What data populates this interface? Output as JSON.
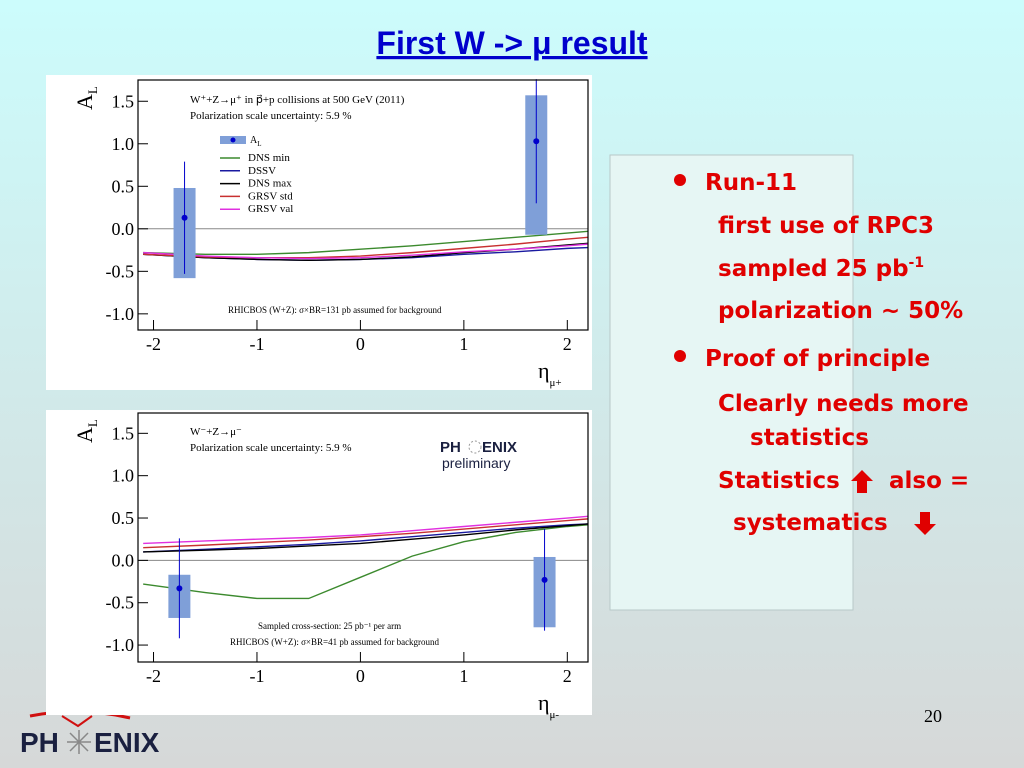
{
  "title": "First W -> μ result",
  "bullets": [
    {
      "text": "Run-11",
      "items": [
        {
          "text": "first use of RPC3"
        },
        {
          "text": "sampled 25 pb",
          "sup": "-1"
        },
        {
          "text": "polarization ~ 50%"
        }
      ]
    },
    {
      "text": "Proof of principle",
      "items": [
        {
          "text": "Clearly needs more"
        },
        {
          "text": "statistics"
        },
        {
          "text": "Statistics",
          "after": "also ="
        },
        {
          "text": "systematics"
        }
      ]
    }
  ],
  "page_number": "20",
  "logo": {
    "left": "PH",
    "right": "ENIX"
  },
  "charts": [
    {
      "type": "errorbar",
      "ylabel": "A",
      "ylabel_sub": "L",
      "xlabel": "η",
      "xlabel_sub": "μ+",
      "xlim": [
        -2.15,
        2.2
      ],
      "ylim": [
        -1.19,
        1.75
      ],
      "xticks": [
        -2,
        -1,
        0,
        1,
        2
      ],
      "yticks": [
        {
          "value": -1,
          "label": "-1.0"
        },
        -0.5,
        {
          "value": 0,
          "label": "0.0"
        },
        0.5,
        {
          "value": 1,
          "label": "1.0"
        },
        1.5
      ],
      "annotations": [
        "W⁺+Z→μ⁺ in p⃗+p collisions at 500 GeV (2011)",
        "Polarization scale uncertainty: 5.9 %",
        "RHICBOS (W+Z): σ×BR=131 pb assumed for background"
      ],
      "legend": true,
      "points": {
        "name": "A",
        "name_sub": "L",
        "color": "#0000cc",
        "box_color": "#7f9fd8",
        "x": [
          -1.7,
          1.7
        ],
        "values": [
          0.13,
          1.03
        ],
        "errors": [
          0.66,
          0.73
        ],
        "box_low": [
          -0.58,
          -0.07
        ],
        "box_high": [
          0.48,
          1.57
        ]
      },
      "series": [
        {
          "name": "DNS min",
          "color": "#3c8a2e",
          "x": [
            -2.1,
            -1.5,
            -1,
            -0.5,
            0,
            0.5,
            1,
            1.5,
            2,
            2.2
          ],
          "values": [
            -0.28,
            -0.3,
            -0.3,
            -0.28,
            -0.24,
            -0.2,
            -0.15,
            -0.1,
            -0.05,
            -0.03
          ]
        },
        {
          "name": "DSSV",
          "color": "#1a1aa0",
          "x": [
            -2.1,
            -1.5,
            -1,
            -0.5,
            0,
            0.5,
            1,
            1.5,
            2,
            2.2
          ],
          "values": [
            -0.3,
            -0.34,
            -0.36,
            -0.37,
            -0.36,
            -0.34,
            -0.3,
            -0.27,
            -0.23,
            -0.22
          ]
        },
        {
          "name": "DNS max",
          "color": "#000000",
          "x": [
            -2.1,
            -1.5,
            -1,
            -0.5,
            0,
            0.5,
            1,
            1.5,
            2,
            2.2
          ],
          "values": [
            -0.3,
            -0.34,
            -0.36,
            -0.37,
            -0.36,
            -0.33,
            -0.28,
            -0.24,
            -0.19,
            -0.17
          ]
        },
        {
          "name": "GRSV std",
          "color": "#c83030",
          "x": [
            -2.1,
            -1.5,
            -1,
            -0.5,
            0,
            0.5,
            1,
            1.5,
            2,
            2.2
          ],
          "values": [
            -0.3,
            -0.33,
            -0.34,
            -0.34,
            -0.32,
            -0.28,
            -0.23,
            -0.18,
            -0.12,
            -0.1
          ]
        },
        {
          "name": "GRSV val",
          "color": "#e030e0",
          "x": [
            -2.1,
            -1.5,
            -1,
            -0.5,
            0,
            0.5,
            1,
            1.5,
            2,
            2.2
          ],
          "values": [
            -0.28,
            -0.32,
            -0.34,
            -0.35,
            -0.34,
            -0.31,
            -0.27,
            -0.24,
            -0.2,
            -0.18
          ]
        }
      ]
    },
    {
      "type": "errorbar",
      "ylabel": "A",
      "ylabel_sub": "L",
      "xlabel": "η",
      "xlabel_sub": "μ-",
      "xlim": [
        -2.15,
        2.2
      ],
      "ylim": [
        -1.2,
        1.74
      ],
      "xticks": [
        -2,
        -1,
        0,
        1,
        2
      ],
      "yticks": [
        {
          "value": -1,
          "label": "-1.0"
        },
        -0.5,
        {
          "value": 0,
          "label": "0.0"
        },
        0.5,
        {
          "value": 1,
          "label": "1.0"
        },
        1.5
      ],
      "annotations": [
        "W⁻+Z→μ⁻",
        "Polarization scale uncertainty: 5.9 %",
        "Sampled cross-section: 25 pb⁻¹ per arm",
        "RHICBOS (W+Z): σ×BR=41 pb assumed for background"
      ],
      "legend": false,
      "logo": {
        "left": "PH",
        "right": "ENIX",
        "sub": "preliminary"
      },
      "points": {
        "color": "#0000cc",
        "box_color": "#7f9fd8",
        "x": [
          -1.75,
          1.78
        ],
        "values": [
          -0.33,
          -0.23
        ],
        "errors": [
          0.59,
          0.6
        ],
        "box_low": [
          -0.68,
          -0.79
        ],
        "box_high": [
          -0.17,
          0.04
        ]
      },
      "series": [
        {
          "color": "#3c8a2e",
          "x": [
            -2.1,
            -1.5,
            -1,
            -0.5,
            0,
            0.5,
            1,
            1.5,
            2,
            2.2
          ],
          "values": [
            -0.28,
            -0.38,
            -0.45,
            -0.45,
            -0.2,
            0.05,
            0.22,
            0.33,
            0.4,
            0.42
          ]
        },
        {
          "color": "#1a1aa0",
          "x": [
            -2.1,
            -1.5,
            -1,
            -0.5,
            0,
            0.5,
            1,
            1.5,
            2,
            2.2
          ],
          "values": [
            0.1,
            0.13,
            0.16,
            0.19,
            0.23,
            0.28,
            0.33,
            0.38,
            0.42,
            0.43
          ]
        },
        {
          "color": "#000000",
          "x": [
            -2.1,
            -1.5,
            -1,
            -0.5,
            0,
            0.5,
            1,
            1.5,
            2,
            2.2
          ],
          "values": [
            0.1,
            0.12,
            0.14,
            0.17,
            0.2,
            0.25,
            0.3,
            0.36,
            0.41,
            0.43
          ]
        },
        {
          "color": "#c83030",
          "x": [
            -2.1,
            -1.5,
            -1,
            -0.5,
            0,
            0.5,
            1,
            1.5,
            2,
            2.2
          ],
          "values": [
            0.15,
            0.18,
            0.21,
            0.24,
            0.28,
            0.32,
            0.37,
            0.42,
            0.47,
            0.49
          ]
        },
        {
          "color": "#e030e0",
          "x": [
            -2.1,
            -1.5,
            -1,
            -0.5,
            0,
            0.5,
            1,
            1.5,
            2,
            2.2
          ],
          "values": [
            0.2,
            0.23,
            0.25,
            0.27,
            0.3,
            0.35,
            0.4,
            0.45,
            0.5,
            0.52
          ]
        }
      ]
    }
  ]
}
